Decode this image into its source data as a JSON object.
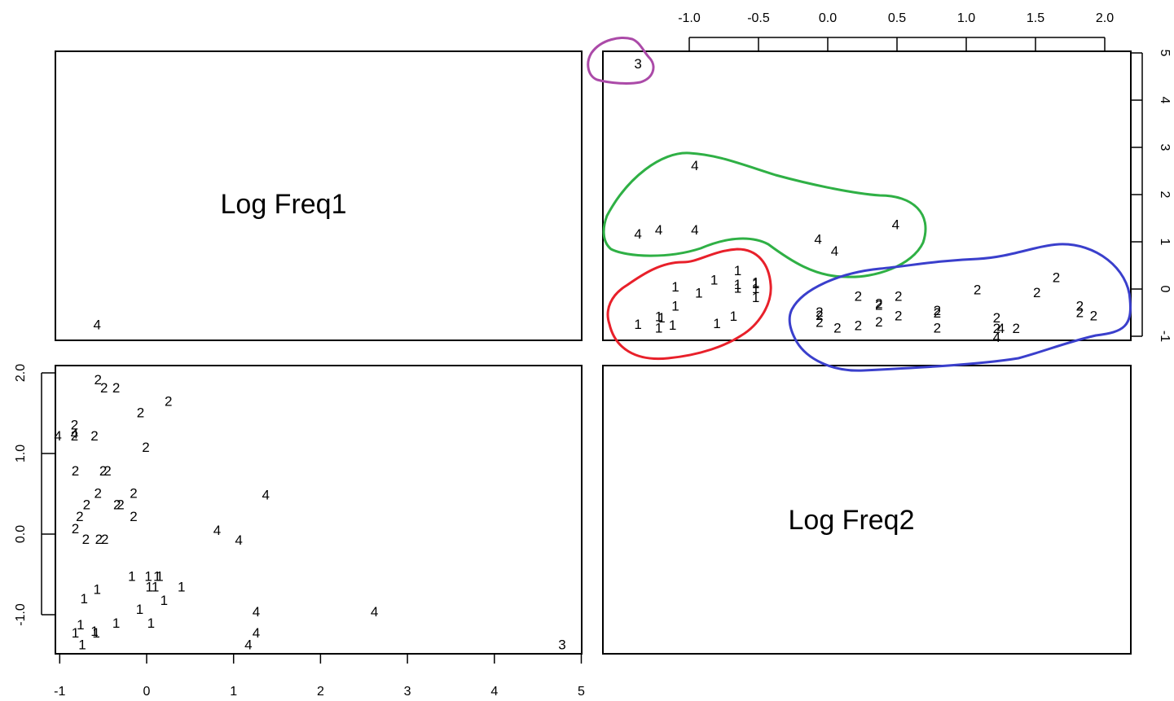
{
  "chart_data": {
    "type": "scatter",
    "variables": [
      "Log Freq1",
      "Log Freq2"
    ],
    "x_ticks": [
      "-1",
      "0",
      "1",
      "2",
      "3",
      "4",
      "5"
    ],
    "x_tick_values": [
      -1,
      0,
      1,
      2,
      3,
      4,
      5
    ],
    "y_ticks": [
      "-1.0",
      "0.0",
      "1.0",
      "2.0"
    ],
    "y_tick_values": [
      -1.0,
      0.0,
      1.0,
      2.0
    ],
    "top_ticks": [
      "-1.0",
      "-0.5",
      "0.0",
      "0.5",
      "1.0",
      "1.5",
      "2.0"
    ],
    "top_tick_values": [
      -1.0,
      -0.5,
      0.0,
      0.5,
      1.0,
      1.5,
      2.0
    ],
    "right_ticks": [
      "-1",
      "0",
      "1",
      "2",
      "3",
      "4",
      "5"
    ],
    "right_tick_values": [
      -1,
      0,
      1,
      2,
      3,
      4,
      5
    ],
    "xlim": [
      -1.1,
      5.1
    ],
    "ylim": [
      -1.5,
      2.1
    ],
    "grid": false,
    "points": [
      {
        "label": "3",
        "x": 4.78,
        "y": -1.37
      },
      {
        "label": "4",
        "x": -0.57,
        "y": 2.6
      },
      {
        "label": "4",
        "x": 1.37,
        "y": 0.49
      },
      {
        "label": "4",
        "x": 0.81,
        "y": 0.05
      },
      {
        "label": "4",
        "x": 1.06,
        "y": -0.07
      },
      {
        "label": "4",
        "x": -1.02,
        "y": 1.22
      },
      {
        "label": "4",
        "x": -0.83,
        "y": 1.25
      },
      {
        "label": "4",
        "x": 1.26,
        "y": -0.96
      },
      {
        "label": "4",
        "x": 2.62,
        "y": -0.96
      },
      {
        "label": "4",
        "x": 1.26,
        "y": -1.22
      },
      {
        "label": "4",
        "x": 1.17,
        "y": -1.37
      },
      {
        "label": "1",
        "x": -0.72,
        "y": -0.8
      },
      {
        "label": "1",
        "x": -0.57,
        "y": -0.68
      },
      {
        "label": "1",
        "x": -0.17,
        "y": -0.52
      },
      {
        "label": "1",
        "x": 0.02,
        "y": -0.52
      },
      {
        "label": "1",
        "x": 0.12,
        "y": -0.52
      },
      {
        "label": "1",
        "x": 0.15,
        "y": -0.52
      },
      {
        "label": "1",
        "x": 0.03,
        "y": -0.65
      },
      {
        "label": "1",
        "x": 0.1,
        "y": -0.65
      },
      {
        "label": "1",
        "x": 0.4,
        "y": -0.65
      },
      {
        "label": "1",
        "x": 0.2,
        "y": -0.82
      },
      {
        "label": "1",
        "x": -0.08,
        "y": -0.93
      },
      {
        "label": "1",
        "x": 0.05,
        "y": -1.1
      },
      {
        "label": "1",
        "x": -0.35,
        "y": -1.1
      },
      {
        "label": "1",
        "x": -0.76,
        "y": -1.12
      },
      {
        "label": "1",
        "x": -0.82,
        "y": -1.22
      },
      {
        "label": "1",
        "x": -0.6,
        "y": -1.2
      },
      {
        "label": "1",
        "x": -0.58,
        "y": -1.22
      },
      {
        "label": "1",
        "x": -0.74,
        "y": -1.37
      },
      {
        "label": "2",
        "x": -0.56,
        "y": 1.92
      },
      {
        "label": "2",
        "x": -0.49,
        "y": 1.82
      },
      {
        "label": "2",
        "x": -0.35,
        "y": 1.82
      },
      {
        "label": "2",
        "x": 0.25,
        "y": 1.65
      },
      {
        "label": "2",
        "x": -0.07,
        "y": 1.51
      },
      {
        "label": "2",
        "x": -0.83,
        "y": 1.36
      },
      {
        "label": "2",
        "x": -0.83,
        "y": 1.22
      },
      {
        "label": "2",
        "x": -0.6,
        "y": 1.22
      },
      {
        "label": "2",
        "x": -0.01,
        "y": 1.08
      },
      {
        "label": "2",
        "x": -0.82,
        "y": 0.79
      },
      {
        "label": "2",
        "x": -0.5,
        "y": 0.79
      },
      {
        "label": "2",
        "x": -0.45,
        "y": 0.79
      },
      {
        "label": "2",
        "x": -0.56,
        "y": 0.51
      },
      {
        "label": "2",
        "x": -0.15,
        "y": 0.51
      },
      {
        "label": "2",
        "x": -0.69,
        "y": 0.37
      },
      {
        "label": "2",
        "x": -0.34,
        "y": 0.37
      },
      {
        "label": "2",
        "x": -0.3,
        "y": 0.37
      },
      {
        "label": "2",
        "x": -0.77,
        "y": 0.22
      },
      {
        "label": "2",
        "x": -0.15,
        "y": 0.22
      },
      {
        "label": "2",
        "x": -0.82,
        "y": 0.07
      },
      {
        "label": "2",
        "x": -0.7,
        "y": -0.06
      },
      {
        "label": "2",
        "x": -0.55,
        "y": -0.06
      },
      {
        "label": "2",
        "x": -0.48,
        "y": -0.06
      }
    ],
    "cluster_outlines": [
      {
        "cluster": "3",
        "color": "#ab4aa8"
      },
      {
        "cluster": "4",
        "color": "#2fb045"
      },
      {
        "cluster": "1",
        "color": "#e8202a"
      },
      {
        "cluster": "2",
        "color": "#3a3fcc"
      }
    ]
  }
}
